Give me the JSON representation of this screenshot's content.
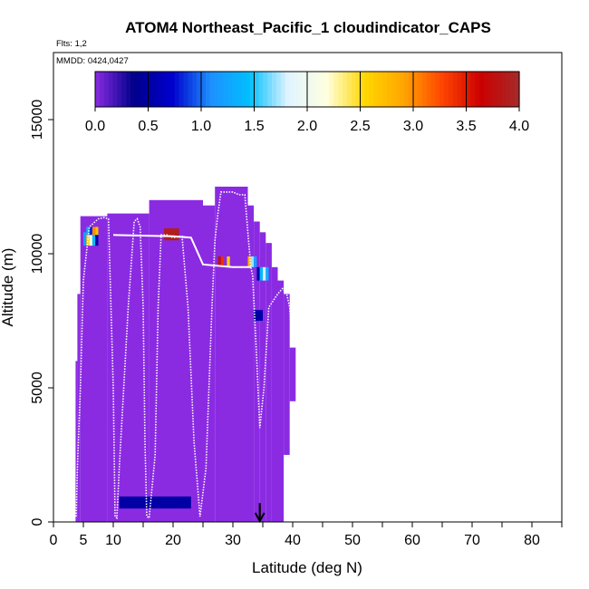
{
  "chart_data": {
    "type": "heatmap",
    "title": "ATOM4 Northeast_Pacific_1 cloudindicator_CAPS",
    "flights_label": "Flts: 1,2",
    "dates_label": "MMDD: 0424,0427",
    "xlabel": "Latitude (deg N)",
    "ylabel": "Altitude (m)",
    "xlim": [
      0,
      85
    ],
    "ylim": [
      0,
      17500
    ],
    "x_tick_values": [
      0,
      5,
      10,
      20,
      30,
      40,
      50,
      60,
      70,
      80
    ],
    "x_tick_labels": [
      "0",
      "5",
      "10",
      "20",
      "30",
      "40",
      "50",
      "60",
      "70",
      "80"
    ],
    "x_minor_ticks": [
      15,
      25,
      35,
      45,
      55,
      65,
      75,
      85
    ],
    "y_tick_values": [
      0,
      5000,
      10000,
      15000
    ],
    "y_tick_labels": [
      "0",
      "5000",
      "10000",
      "15000"
    ],
    "colorbar": {
      "range": [
        0.0,
        4.0
      ],
      "tick_labels": [
        "0.0",
        "0.5",
        "1.0",
        "1.5",
        "2.0",
        "2.5",
        "3.0",
        "3.5",
        "4.0"
      ],
      "colors": [
        "#8a2be2",
        "#00008b",
        "#0000cd",
        "#1e90ff",
        "#00bfff",
        "#e0f4ff",
        "#ffffe0",
        "#ffd700",
        "#ffa500",
        "#ff4500",
        "#cc0000",
        "#a52a2a"
      ]
    },
    "background_value": 0.0,
    "cloud_field": [
      {
        "lat0": 3.7,
        "lat1": 4.0,
        "alt0": 0,
        "alt1": 6000
      },
      {
        "lat0": 4.0,
        "lat1": 4.5,
        "alt0": 0,
        "alt1": 8500
      },
      {
        "lat0": 4.5,
        "lat1": 9.0,
        "alt0": 0,
        "alt1": 11400
      },
      {
        "lat0": 9.0,
        "lat1": 16.0,
        "alt0": 0,
        "alt1": 11500
      },
      {
        "lat0": 16.0,
        "lat1": 25.0,
        "alt0": 0,
        "alt1": 12000
      },
      {
        "lat0": 25.0,
        "lat1": 27.0,
        "alt0": 0,
        "alt1": 11800
      },
      {
        "lat0": 27.0,
        "lat1": 32.5,
        "alt0": 0,
        "alt1": 12500
      },
      {
        "lat0": 32.5,
        "lat1": 33.5,
        "alt0": 0,
        "alt1": 11800
      },
      {
        "lat0": 33.5,
        "lat1": 34.5,
        "alt0": 0,
        "alt1": 11200
      },
      {
        "lat0": 34.5,
        "lat1": 35.5,
        "alt0": 0,
        "alt1": 10800
      },
      {
        "lat0": 35.5,
        "lat1": 36.5,
        "alt0": 0,
        "alt1": 10400
      },
      {
        "lat0": 36.5,
        "lat1": 37.5,
        "alt0": 0,
        "alt1": 9500
      },
      {
        "lat0": 37.5,
        "lat1": 38.5,
        "alt0": 0,
        "alt1": 9000
      },
      {
        "lat0": 38.5,
        "lat1": 39.5,
        "alt0": 2500,
        "alt1": 8500
      },
      {
        "lat0": 39.5,
        "lat1": 40.5,
        "alt0": 4500,
        "alt1": 6500
      }
    ],
    "cloud_patches": [
      {
        "lat0": 5.0,
        "lat1": 5.5,
        "alt0": 10300,
        "alt1": 10800,
        "value": 1.2
      },
      {
        "lat0": 5.5,
        "lat1": 6.0,
        "alt0": 10300,
        "alt1": 10800,
        "value": 2.6
      },
      {
        "lat0": 6.0,
        "lat1": 6.5,
        "alt0": 10300,
        "alt1": 10800,
        "value": 2.2
      },
      {
        "lat0": 6.5,
        "lat1": 7.0,
        "alt0": 10300,
        "alt1": 10800,
        "value": 1.4
      },
      {
        "lat0": 7.0,
        "lat1": 7.5,
        "alt0": 10300,
        "alt1": 10800,
        "value": 0.5
      },
      {
        "lat0": 5.5,
        "lat1": 6.0,
        "alt0": 10700,
        "alt1": 11000,
        "value": 1.3
      },
      {
        "lat0": 6.0,
        "lat1": 6.5,
        "alt0": 10700,
        "alt1": 11000,
        "value": 0.8
      },
      {
        "lat0": 6.5,
        "lat1": 7.0,
        "alt0": 10700,
        "alt1": 11000,
        "value": 3.0
      },
      {
        "lat0": 7.0,
        "lat1": 7.5,
        "alt0": 10700,
        "alt1": 11000,
        "value": 2.7
      },
      {
        "lat0": 18.5,
        "lat1": 21.0,
        "alt0": 10500,
        "alt1": 10950,
        "value": 3.9
      },
      {
        "lat0": 27.5,
        "lat1": 28.0,
        "alt0": 9500,
        "alt1": 9900,
        "value": 3.8
      },
      {
        "lat0": 28.0,
        "lat1": 28.5,
        "alt0": 9500,
        "alt1": 9900,
        "value": 3.4
      },
      {
        "lat0": 29.0,
        "lat1": 29.5,
        "alt0": 9500,
        "alt1": 9900,
        "value": 2.6
      },
      {
        "lat0": 32.5,
        "lat1": 33.0,
        "alt0": 9500,
        "alt1": 9900,
        "value": 2.8
      },
      {
        "lat0": 33.0,
        "lat1": 33.5,
        "alt0": 9500,
        "alt1": 9900,
        "value": 1.7
      },
      {
        "lat0": 33.5,
        "lat1": 34.0,
        "alt0": 9500,
        "alt1": 9900,
        "value": 1.2
      },
      {
        "lat0": 34.0,
        "lat1": 34.5,
        "alt0": 9000,
        "alt1": 9500,
        "value": 0.5
      },
      {
        "lat0": 34.5,
        "lat1": 35.0,
        "alt0": 9000,
        "alt1": 9500,
        "value": 1.4
      },
      {
        "lat0": 35.0,
        "lat1": 35.5,
        "alt0": 9000,
        "alt1": 9500,
        "value": 1.8
      },
      {
        "lat0": 35.5,
        "lat1": 36.0,
        "alt0": 9000,
        "alt1": 9500,
        "value": 1.3
      },
      {
        "lat0": 33.5,
        "lat1": 35.0,
        "alt0": 7500,
        "alt1": 7900,
        "value": 0.5
      },
      {
        "lat0": 11.0,
        "lat1": 23.0,
        "alt0": 500,
        "alt1": 950,
        "value": 0.5
      }
    ],
    "flight_track": {
      "lat": [
        3.8,
        4.0,
        4.5,
        5.0,
        6.0,
        7.5,
        8.5,
        9.2,
        10.0,
        10.3,
        10.6,
        11.0,
        12.5,
        13.5,
        14.0,
        14.5,
        15.0,
        15.3,
        15.6,
        16.0,
        17.0,
        17.5,
        18.0,
        19.0,
        20.0,
        21.5,
        22.5,
        23.5,
        24.5,
        25.5,
        26.5,
        27.0,
        27.5,
        28.0,
        29.0,
        30.0,
        31.0,
        32.0,
        32.5,
        33.0,
        33.3,
        34.0,
        34.5,
        35.2,
        36.0,
        37.5,
        38.3,
        39.0,
        39.5,
        39.8
      ],
      "alt": [
        200,
        2000,
        5000,
        9000,
        11000,
        11300,
        11350,
        11300,
        5000,
        200,
        150,
        2000,
        8000,
        11200,
        11300,
        11000,
        8000,
        3000,
        200,
        150,
        2500,
        8000,
        10700,
        10700,
        10600,
        10650,
        8000,
        3000,
        200,
        2000,
        8000,
        10500,
        11500,
        12300,
        12300,
        12300,
        12200,
        12200,
        10800,
        9500,
        9200,
        6000,
        3500,
        5000,
        8000,
        8500,
        8700,
        8500,
        8000,
        7000
      ]
    },
    "flight_segments": [
      {
        "lat": [
          10.0,
          20.0,
          23.0,
          25.0,
          30.0,
          33.0
        ],
        "alt": [
          10700,
          10650,
          10600,
          9600,
          9500,
          9500
        ]
      }
    ],
    "marker": {
      "lat": 34.5,
      "alt_top": 700,
      "alt_bottom": 0,
      "shape": "arrow-down"
    }
  }
}
